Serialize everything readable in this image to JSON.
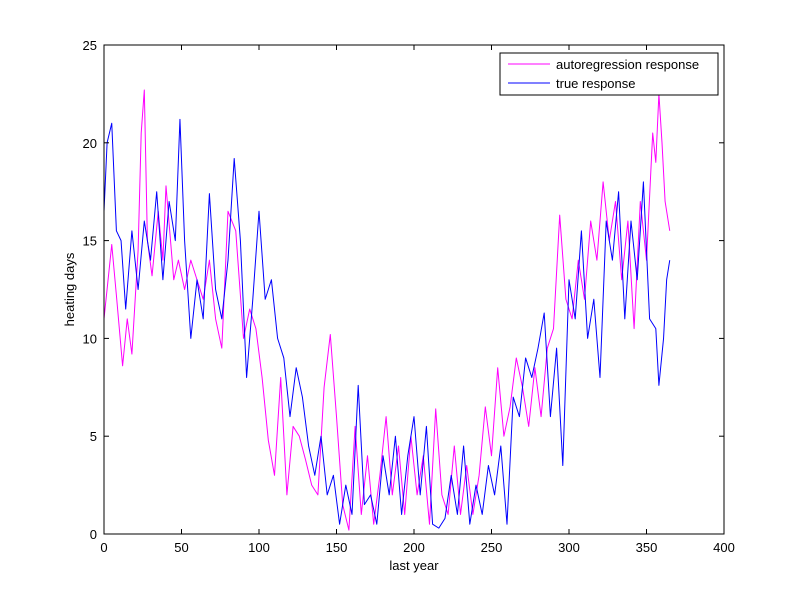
{
  "chart_data": {
    "type": "line",
    "title": "",
    "xlabel": "last year",
    "ylabel": "heating days",
    "xlim": [
      0,
      400
    ],
    "ylim": [
      0,
      25
    ],
    "xticks": [
      0,
      50,
      100,
      150,
      200,
      250,
      300,
      350,
      400
    ],
    "yticks": [
      0,
      5,
      10,
      15,
      20,
      25
    ],
    "grid": false,
    "legend": {
      "placement": "top-right"
    },
    "series": [
      {
        "name": "autoregression response",
        "color": "#ff00ff",
        "x": [
          0,
          5,
          8,
          12,
          15,
          18,
          22,
          24,
          26,
          28,
          31,
          35,
          38,
          40,
          45,
          48,
          52,
          56,
          60,
          64,
          68,
          72,
          76,
          80,
          85,
          90,
          94,
          98,
          102,
          106,
          110,
          114,
          118,
          122,
          126,
          130,
          134,
          138,
          142,
          146,
          150,
          154,
          158,
          162,
          166,
          170,
          174,
          178,
          182,
          186,
          190,
          194,
          198,
          202,
          206,
          210,
          214,
          218,
          222,
          226,
          230,
          234,
          238,
          242,
          246,
          250,
          254,
          258,
          262,
          266,
          270,
          274,
          278,
          282,
          286,
          290,
          294,
          298,
          302,
          306,
          310,
          314,
          318,
          322,
          326,
          330,
          334,
          338,
          342,
          346,
          350,
          354,
          356,
          358,
          360,
          362,
          365
        ],
        "values": [
          11.0,
          14.8,
          12.2,
          8.6,
          11.0,
          9.2,
          14.5,
          20.5,
          22.7,
          15.0,
          13.2,
          16.5,
          14.0,
          17.8,
          13.0,
          14.0,
          12.5,
          14.0,
          13.0,
          12.0,
          14.0,
          11.0,
          9.5,
          16.5,
          15.5,
          10.0,
          11.5,
          10.5,
          8.0,
          4.8,
          3.0,
          8.0,
          2.0,
          5.5,
          5.0,
          3.8,
          2.5,
          2.0,
          7.5,
          10.2,
          6.0,
          1.5,
          0.2,
          5.5,
          1.0,
          4.0,
          0.5,
          3.0,
          6.0,
          2.0,
          4.5,
          1.0,
          5.0,
          2.0,
          4.0,
          0.5,
          6.4,
          2.0,
          1.0,
          4.5,
          1.0,
          3.5,
          1.0,
          3.0,
          6.5,
          4.0,
          8.5,
          5.0,
          6.5,
          9.0,
          7.5,
          5.5,
          8.5,
          6.0,
          9.5,
          10.5,
          16.3,
          12.0,
          11.0,
          14.0,
          12.0,
          16.0,
          14.0,
          18.0,
          15.0,
          17.0,
          13.0,
          16.0,
          10.5,
          17.0,
          14.0,
          20.5,
          19.0,
          22.5,
          20.0,
          17.0,
          15.5
        ]
      },
      {
        "name": "true response",
        "color": "#0000ff",
        "x": [
          0,
          2,
          5,
          8,
          11,
          14,
          18,
          22,
          26,
          30,
          34,
          38,
          42,
          46,
          49,
          52,
          56,
          60,
          64,
          68,
          72,
          76,
          80,
          84,
          88,
          92,
          96,
          100,
          104,
          108,
          112,
          116,
          120,
          124,
          128,
          132,
          136,
          140,
          144,
          148,
          152,
          156,
          160,
          164,
          168,
          172,
          176,
          180,
          184,
          188,
          192,
          196,
          200,
          204,
          208,
          212,
          216,
          220,
          224,
          228,
          232,
          236,
          240,
          244,
          248,
          252,
          256,
          260,
          264,
          268,
          272,
          276,
          280,
          284,
          288,
          292,
          296,
          300,
          304,
          308,
          312,
          316,
          320,
          324,
          328,
          332,
          336,
          340,
          344,
          348,
          352,
          356,
          358,
          361,
          363,
          365
        ],
        "values": [
          16.5,
          20.0,
          21.0,
          15.5,
          15.0,
          11.5,
          15.5,
          12.5,
          16.0,
          14.0,
          17.5,
          13.0,
          17.0,
          15.0,
          21.2,
          15.0,
          10.0,
          13.0,
          11.0,
          17.4,
          12.5,
          11.0,
          14.0,
          19.2,
          15.0,
          8.0,
          12.0,
          16.5,
          12.0,
          13.0,
          10.0,
          9.0,
          6.0,
          8.5,
          7.0,
          4.5,
          3.0,
          5.0,
          2.0,
          3.0,
          0.5,
          2.5,
          1.0,
          7.6,
          1.5,
          2.0,
          0.5,
          4.0,
          2.0,
          5.0,
          1.0,
          4.0,
          6.0,
          2.0,
          5.5,
          0.5,
          0.3,
          0.8,
          3.0,
          1.0,
          4.5,
          0.5,
          2.5,
          1.0,
          3.5,
          2.0,
          4.5,
          0.5,
          7.0,
          6.0,
          9.0,
          8.0,
          9.5,
          11.3,
          6.0,
          9.5,
          3.5,
          13.0,
          11.0,
          15.5,
          10.0,
          12.0,
          8.0,
          16.0,
          14.0,
          17.5,
          11.0,
          16.0,
          13.0,
          18.0,
          11.0,
          10.5,
          7.6,
          10.0,
          13.0,
          14.0
        ]
      }
    ]
  }
}
